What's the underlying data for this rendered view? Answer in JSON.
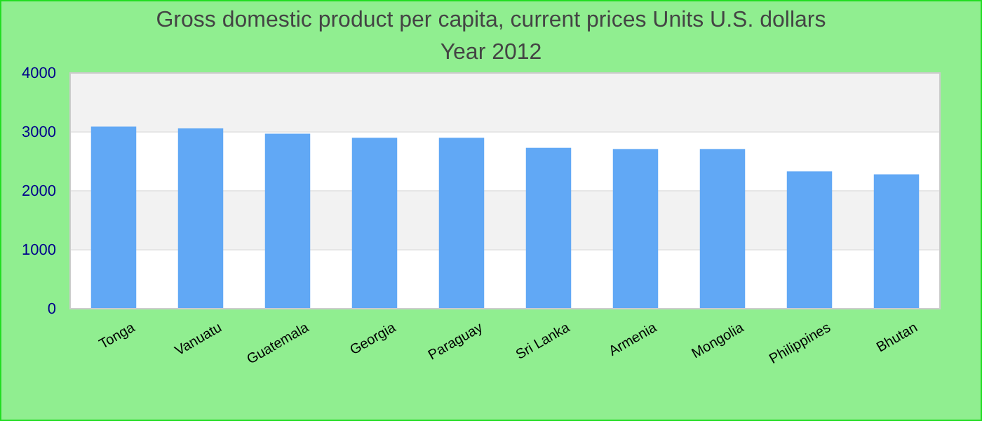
{
  "chart_data": {
    "type": "bar",
    "title": "Gross domestic product per capita, current prices Units U.S. dollars",
    "subtitle": "Year 2012",
    "categories": [
      "Tonga",
      "Vanuatu",
      "Guatemala",
      "Georgia",
      "Paraguay",
      "Sri Lanka",
      "Armenia",
      "Mongolia",
      "Philippines",
      "Bhutan"
    ],
    "values": [
      3090,
      3060,
      2970,
      2900,
      2900,
      2730,
      2710,
      2710,
      2330,
      2280
    ],
    "color": "#61a8f5",
    "ylim": [
      0,
      4000
    ],
    "yticks": [
      0,
      1000,
      2000,
      3000,
      4000
    ],
    "grid": "y"
  }
}
